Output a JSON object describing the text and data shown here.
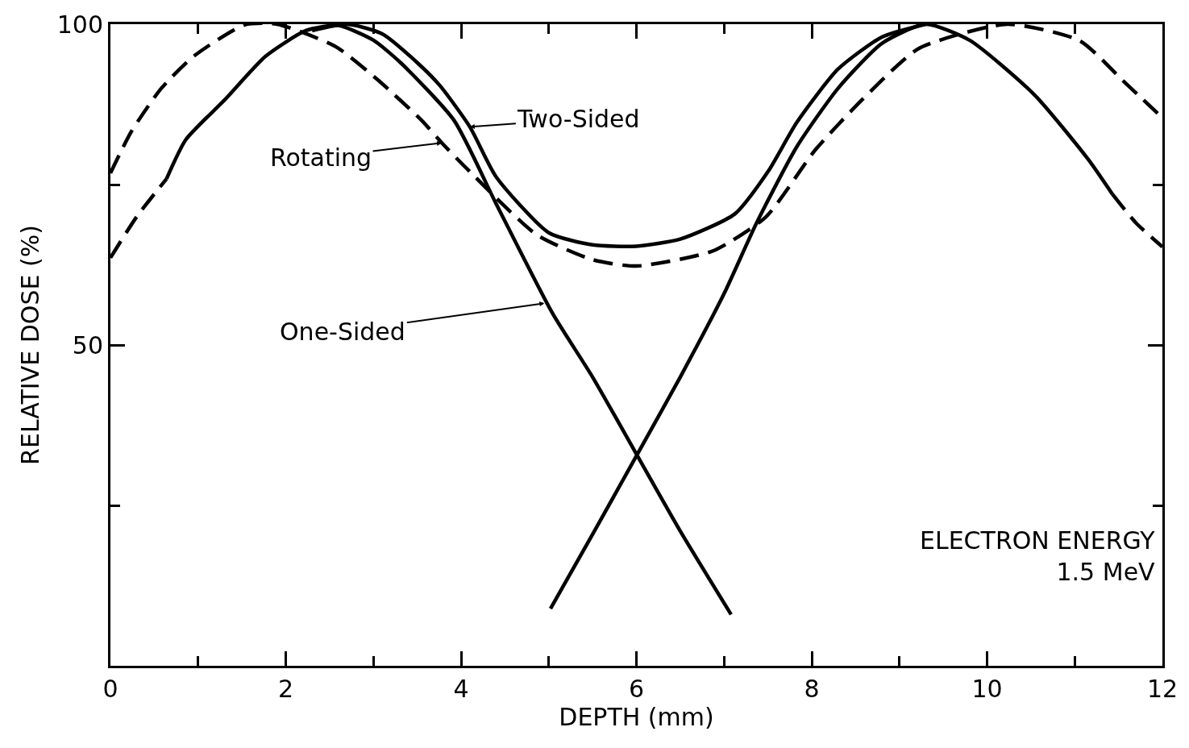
{
  "chart_data": {
    "type": "line",
    "xlabel": "DEPTH (mm)",
    "ylabel": "RELATIVE DOSE (%)",
    "xlim": [
      0,
      12
    ],
    "ylim": [
      0,
      100
    ],
    "xticks": [
      0,
      {
        "value": 1,
        "label": null
      },
      2,
      {
        "value": 3,
        "label": null
      },
      4,
      {
        "value": 5,
        "label": null
      },
      6,
      {
        "value": 7,
        "label": null
      },
      8,
      {
        "value": 9,
        "label": null
      },
      10,
      {
        "value": 11,
        "label": null
      },
      12
    ],
    "yticks": [
      {
        "value": 25,
        "label": null
      },
      50,
      {
        "value": 75,
        "label": null
      },
      100
    ],
    "marker": "none",
    "series": [
      {
        "color": "#000000",
        "line_style": "dashed",
        "x": [
          0,
          0.3,
          0.64
        ],
        "values": [
          63.6,
          70,
          75.9
        ]
      },
      {
        "color": "#000000",
        "line_style": "solid",
        "x": [
          0.64,
          0.86,
          1.31,
          1.77,
          2.23,
          2.6,
          3.0,
          3.31,
          3.92,
          4.4,
          5.04,
          5.5,
          6.0,
          6.5,
          7.08
        ],
        "values": [
          75.9,
          82,
          88.3,
          95,
          99,
          99.8,
          97.5,
          94,
          85,
          72,
          55,
          45,
          33,
          21,
          8
        ]
      },
      {
        "color": "#000000",
        "line_style": "solid",
        "x": [
          5.02,
          5.5,
          6.0,
          6.5,
          7.0,
          7.37,
          7.83,
          8.3,
          8.8,
          9.3,
          9.8,
          10.54,
          11.15,
          11.43
        ],
        "values": [
          8.9,
          20.5,
          32.7,
          45,
          58,
          69,
          80.9,
          90,
          97,
          100,
          97.5,
          89,
          79,
          73.5
        ]
      },
      {
        "color": "#000000",
        "line_style": "dashed",
        "x": [
          11.43,
          11.7,
          12
        ],
        "values": [
          73.5,
          69,
          65.3
        ]
      },
      {
        "color": "#000000",
        "line_style": "solid",
        "x": [
          2.3,
          2.7,
          3.1,
          3.5,
          3.76,
          4.1,
          4.4,
          5.0,
          5.5,
          6.0,
          6.5,
          7.12,
          7.5,
          7.83,
          8.3,
          8.8,
          9.3
        ],
        "values": [
          99,
          100,
          98.5,
          94,
          90.4,
          84,
          76.2,
          67.5,
          65.6,
          65.4,
          66.5,
          70.4,
          77,
          84.7,
          93,
          98,
          100
        ]
      },
      {
        "color": "#000000",
        "line_style": "dashed",
        "x": [
          0,
          0.24,
          0.58,
          0.95,
          1.53,
          1.9,
          2.57,
          3.06,
          3.55,
          3.78,
          4.05,
          4.86,
          5.5,
          6.0,
          6.88,
          7.48,
          8.04,
          8.58,
          9.22,
          10.23,
          11.06,
          11.55,
          12
        ],
        "values": [
          76.8,
          83.3,
          90,
          95,
          99.9,
          100,
          96.5,
          91.2,
          85,
          81.5,
          77.7,
          67.2,
          63.3,
          62.3,
          64.7,
          70,
          80.4,
          88.3,
          96.2,
          100,
          97.4,
          91.2,
          85.4
        ]
      }
    ],
    "annotations": [
      {
        "text": "Two-Sided",
        "x": 4.1,
        "y": 84
      },
      {
        "text": "Rotating",
        "x": 3.78,
        "y": 81.5
      },
      {
        "text": "One-Sided",
        "x": 4.95,
        "y": 56.5
      },
      "ELECTRON ENERGY\n1.5 MeV"
    ]
  }
}
